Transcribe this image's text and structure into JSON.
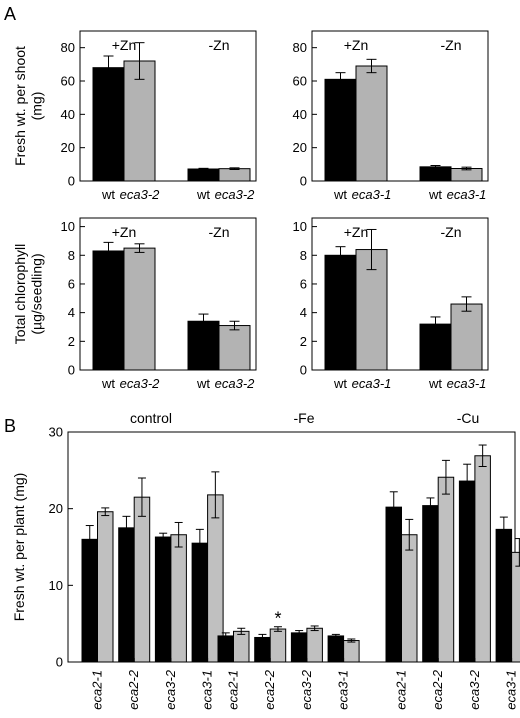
{
  "panels": {
    "a": "A",
    "b": "B"
  },
  "colors": {
    "wt": "#000000",
    "mutant": "#b3b3b3",
    "mutant_b": "#c0c0c0",
    "bar_stroke": "#000000"
  },
  "chart_data": [
    {
      "id": "A1",
      "type": "bar",
      "ylabel": "Fresh wt. per shoot (mg)",
      "ylim": [
        0,
        90
      ],
      "yticks": [
        0,
        20,
        40,
        60,
        80
      ],
      "group_labels": [
        "+Zn",
        "-Zn"
      ],
      "categories": [
        {
          "wt": "wt",
          "mut": "eca3-2"
        },
        {
          "wt": "wt",
          "mut": "eca3-2"
        }
      ],
      "series": [
        {
          "name": "wt",
          "values": [
            68,
            7.2
          ],
          "errors": [
            7,
            0.4
          ]
        },
        {
          "name": "eca3-2",
          "values": [
            72,
            7.4
          ],
          "errors": [
            11,
            0.5
          ]
        }
      ]
    },
    {
      "id": "A2",
      "type": "bar",
      "ylabel": "",
      "ylim": [
        0,
        90
      ],
      "yticks": [
        0,
        20,
        40,
        60,
        80
      ],
      "group_labels": [
        "+Zn",
        "-Zn"
      ],
      "categories": [
        {
          "wt": "wt",
          "mut": "eca3-1"
        },
        {
          "wt": "wt",
          "mut": "eca3-1"
        }
      ],
      "series": [
        {
          "name": "wt",
          "values": [
            61,
            8.5
          ],
          "errors": [
            4,
            0.8
          ]
        },
        {
          "name": "eca3-1",
          "values": [
            69,
            7.5
          ],
          "errors": [
            4,
            0.8
          ]
        }
      ]
    },
    {
      "id": "A3",
      "type": "bar",
      "ylabel": "Total chlorophyll (µg/seedling)",
      "ylim": [
        0,
        10.6
      ],
      "yticks": [
        0,
        2,
        4,
        6,
        8,
        10
      ],
      "group_labels": [
        "+Zn",
        "-Zn"
      ],
      "categories": [
        {
          "wt": "wt",
          "mut": "eca3-2"
        },
        {
          "wt": "wt",
          "mut": "eca3-2"
        }
      ],
      "series": [
        {
          "name": "wt",
          "values": [
            8.3,
            3.4
          ],
          "errors": [
            0.6,
            0.5
          ]
        },
        {
          "name": "eca3-2",
          "values": [
            8.5,
            3.1
          ],
          "errors": [
            0.3,
            0.3
          ]
        }
      ]
    },
    {
      "id": "A4",
      "type": "bar",
      "ylabel": "",
      "ylim": [
        0,
        10.6
      ],
      "yticks": [
        0,
        2,
        4,
        6,
        8,
        10
      ],
      "group_labels": [
        "+Zn",
        "-Zn"
      ],
      "categories": [
        {
          "wt": "wt",
          "mut": "eca3-1"
        },
        {
          "wt": "wt",
          "mut": "eca3-1"
        }
      ],
      "series": [
        {
          "name": "wt",
          "values": [
            8.0,
            3.2
          ],
          "errors": [
            0.6,
            0.5
          ]
        },
        {
          "name": "eca3-1",
          "values": [
            8.4,
            4.6
          ],
          "errors": [
            1.4,
            0.5
          ]
        }
      ]
    },
    {
      "id": "B",
      "type": "bar",
      "ylabel": "Fresh wt. per plant (mg)",
      "ylim": [
        0,
        30
      ],
      "yticks": [
        0,
        10,
        20,
        30
      ],
      "conditions": [
        "control",
        "-Fe",
        "-Cu"
      ],
      "categories": [
        "eca2-1",
        "eca2-2",
        "eca3-2",
        "eca3-1"
      ],
      "annotation": "*",
      "annotated_bar": {
        "condition": "-Fe",
        "category": "eca2-2",
        "series": 1
      },
      "groups": [
        {
          "condition": "control",
          "pairs": [
            {
              "values": [
                16.0,
                19.6
              ],
              "errors": [
                1.8,
                0.5
              ]
            },
            {
              "values": [
                17.5,
                21.5
              ],
              "errors": [
                1.5,
                2.5
              ]
            },
            {
              "values": [
                16.3,
                16.6
              ],
              "errors": [
                0.5,
                1.6
              ]
            },
            {
              "values": [
                15.5,
                21.8
              ],
              "errors": [
                1.8,
                3.0
              ]
            }
          ]
        },
        {
          "condition": "-Fe",
          "pairs": [
            {
              "values": [
                3.4,
                4.0
              ],
              "errors": [
                0.4,
                0.4
              ]
            },
            {
              "values": [
                3.2,
                4.3
              ],
              "errors": [
                0.4,
                0.3
              ]
            },
            {
              "values": [
                3.8,
                4.4
              ],
              "errors": [
                0.3,
                0.3
              ]
            },
            {
              "values": [
                3.4,
                2.8
              ],
              "errors": [
                0.2,
                0.2
              ]
            }
          ]
        },
        {
          "condition": "-Cu",
          "pairs": [
            {
              "values": [
                20.2,
                16.6
              ],
              "errors": [
                2.0,
                2.0
              ]
            },
            {
              "values": [
                20.4,
                24.1
              ],
              "errors": [
                1.0,
                2.2
              ]
            },
            {
              "values": [
                23.6,
                26.9
              ],
              "errors": [
                2.2,
                1.4
              ]
            },
            {
              "values": [
                17.3,
                14.3
              ],
              "errors": [
                1.6,
                1.8
              ]
            }
          ]
        }
      ]
    }
  ]
}
